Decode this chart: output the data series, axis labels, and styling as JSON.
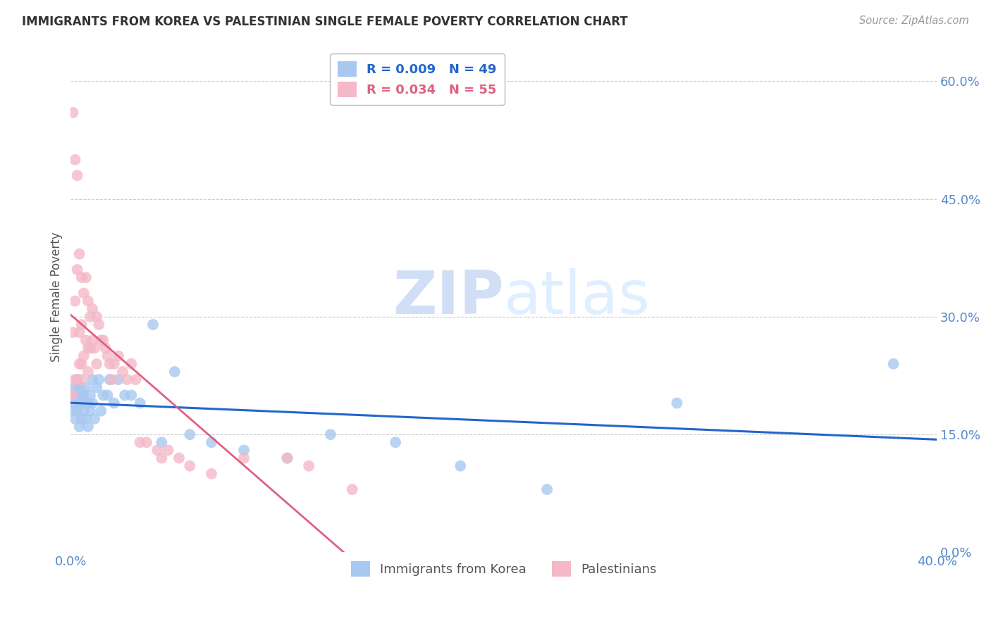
{
  "title": "IMMIGRANTS FROM KOREA VS PALESTINIAN SINGLE FEMALE POVERTY CORRELATION CHART",
  "source": "Source: ZipAtlas.com",
  "ylabel_right_ticks": [
    0.0,
    15.0,
    30.0,
    45.0,
    60.0
  ],
  "xlim": [
    0.0,
    0.4
  ],
  "ylim": [
    0.0,
    0.65
  ],
  "series1_label": "Immigrants from Korea",
  "series1_R": "0.009",
  "series1_N": "49",
  "series1_color": "#a8c8f0",
  "series1_trend_color": "#2266cc",
  "series2_label": "Palestinians",
  "series2_R": "0.034",
  "series2_N": "55",
  "series2_color": "#f5b8c8",
  "series2_trend_color": "#e06080",
  "background_color": "#ffffff",
  "grid_color": "#cccccc",
  "axis_label_color": "#5588cc",
  "title_color": "#333333",
  "watermark_color": "#d0dff5",
  "korea_x": [
    0.001,
    0.001,
    0.002,
    0.002,
    0.002,
    0.003,
    0.003,
    0.003,
    0.004,
    0.004,
    0.004,
    0.005,
    0.005,
    0.005,
    0.006,
    0.006,
    0.007,
    0.007,
    0.008,
    0.008,
    0.009,
    0.009,
    0.01,
    0.01,
    0.011,
    0.012,
    0.013,
    0.014,
    0.015,
    0.017,
    0.018,
    0.02,
    0.022,
    0.025,
    0.028,
    0.032,
    0.038,
    0.042,
    0.048,
    0.055,
    0.065,
    0.08,
    0.1,
    0.12,
    0.15,
    0.18,
    0.22,
    0.28,
    0.38
  ],
  "korea_y": [
    0.2,
    0.18,
    0.21,
    0.19,
    0.17,
    0.22,
    0.2,
    0.18,
    0.19,
    0.21,
    0.16,
    0.2,
    0.17,
    0.19,
    0.18,
    0.2,
    0.21,
    0.17,
    0.19,
    0.16,
    0.2,
    0.18,
    0.22,
    0.19,
    0.17,
    0.21,
    0.22,
    0.18,
    0.2,
    0.2,
    0.22,
    0.19,
    0.22,
    0.2,
    0.2,
    0.19,
    0.29,
    0.14,
    0.23,
    0.15,
    0.14,
    0.13,
    0.12,
    0.15,
    0.14,
    0.11,
    0.08,
    0.19,
    0.24
  ],
  "korea_big_x": [
    0.0003
  ],
  "korea_big_y": [
    0.2
  ],
  "pal_x": [
    0.001,
    0.001,
    0.001,
    0.002,
    0.002,
    0.002,
    0.003,
    0.003,
    0.003,
    0.004,
    0.004,
    0.004,
    0.005,
    0.005,
    0.005,
    0.005,
    0.006,
    0.006,
    0.007,
    0.007,
    0.008,
    0.008,
    0.008,
    0.009,
    0.009,
    0.01,
    0.01,
    0.011,
    0.012,
    0.012,
    0.013,
    0.014,
    0.015,
    0.016,
    0.017,
    0.018,
    0.019,
    0.02,
    0.022,
    0.024,
    0.026,
    0.028,
    0.03,
    0.032,
    0.035,
    0.04,
    0.042,
    0.045,
    0.05,
    0.055,
    0.065,
    0.08,
    0.1,
    0.11,
    0.13
  ],
  "pal_y": [
    0.56,
    0.28,
    0.2,
    0.5,
    0.32,
    0.22,
    0.48,
    0.36,
    0.22,
    0.38,
    0.28,
    0.24,
    0.35,
    0.29,
    0.24,
    0.22,
    0.33,
    0.25,
    0.35,
    0.27,
    0.32,
    0.26,
    0.23,
    0.3,
    0.26,
    0.31,
    0.27,
    0.26,
    0.3,
    0.24,
    0.29,
    0.27,
    0.27,
    0.26,
    0.25,
    0.24,
    0.22,
    0.24,
    0.25,
    0.23,
    0.22,
    0.24,
    0.22,
    0.14,
    0.14,
    0.13,
    0.12,
    0.13,
    0.12,
    0.11,
    0.1,
    0.12,
    0.12,
    0.11,
    0.08
  ],
  "pal_big_x": [
    0.0003
  ],
  "pal_big_y": [
    0.22
  ]
}
